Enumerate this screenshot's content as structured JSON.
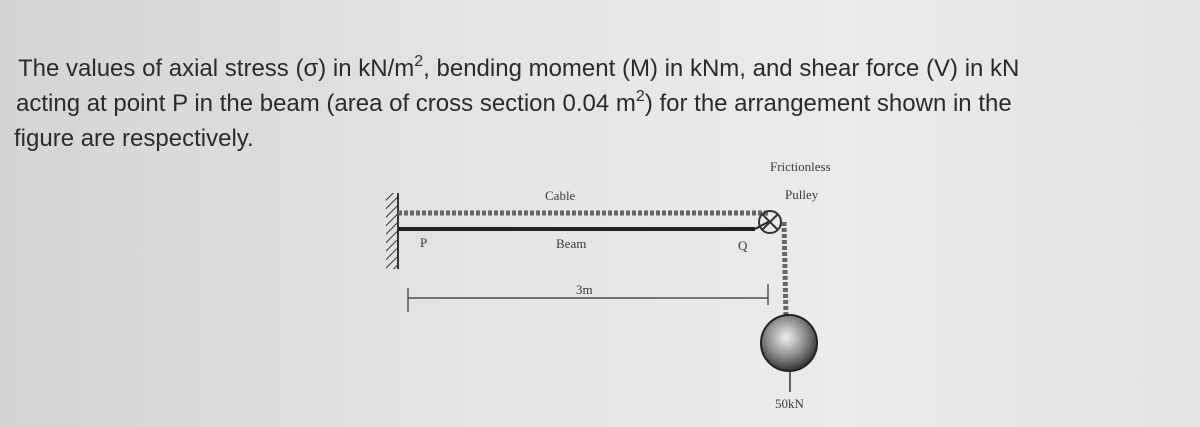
{
  "question": {
    "line1": [
      "The values of axial stress (σ) in kN/m",
      "2",
      ", bending moment (M) in kNm, and shear force (V) in kN"
    ],
    "line2": [
      "acting at point P in the beam (area of cross section 0.04 m",
      "2",
      ") for the arrangement shown in the"
    ],
    "line3": [
      "figure are respectively."
    ]
  },
  "figure": {
    "pulley_label": [
      "Frictionless",
      "Pulley"
    ],
    "cable_label": "Cable",
    "beam_label": "Beam",
    "point_p": "P",
    "point_q": "Q",
    "span": "3m",
    "load": "50kN"
  }
}
